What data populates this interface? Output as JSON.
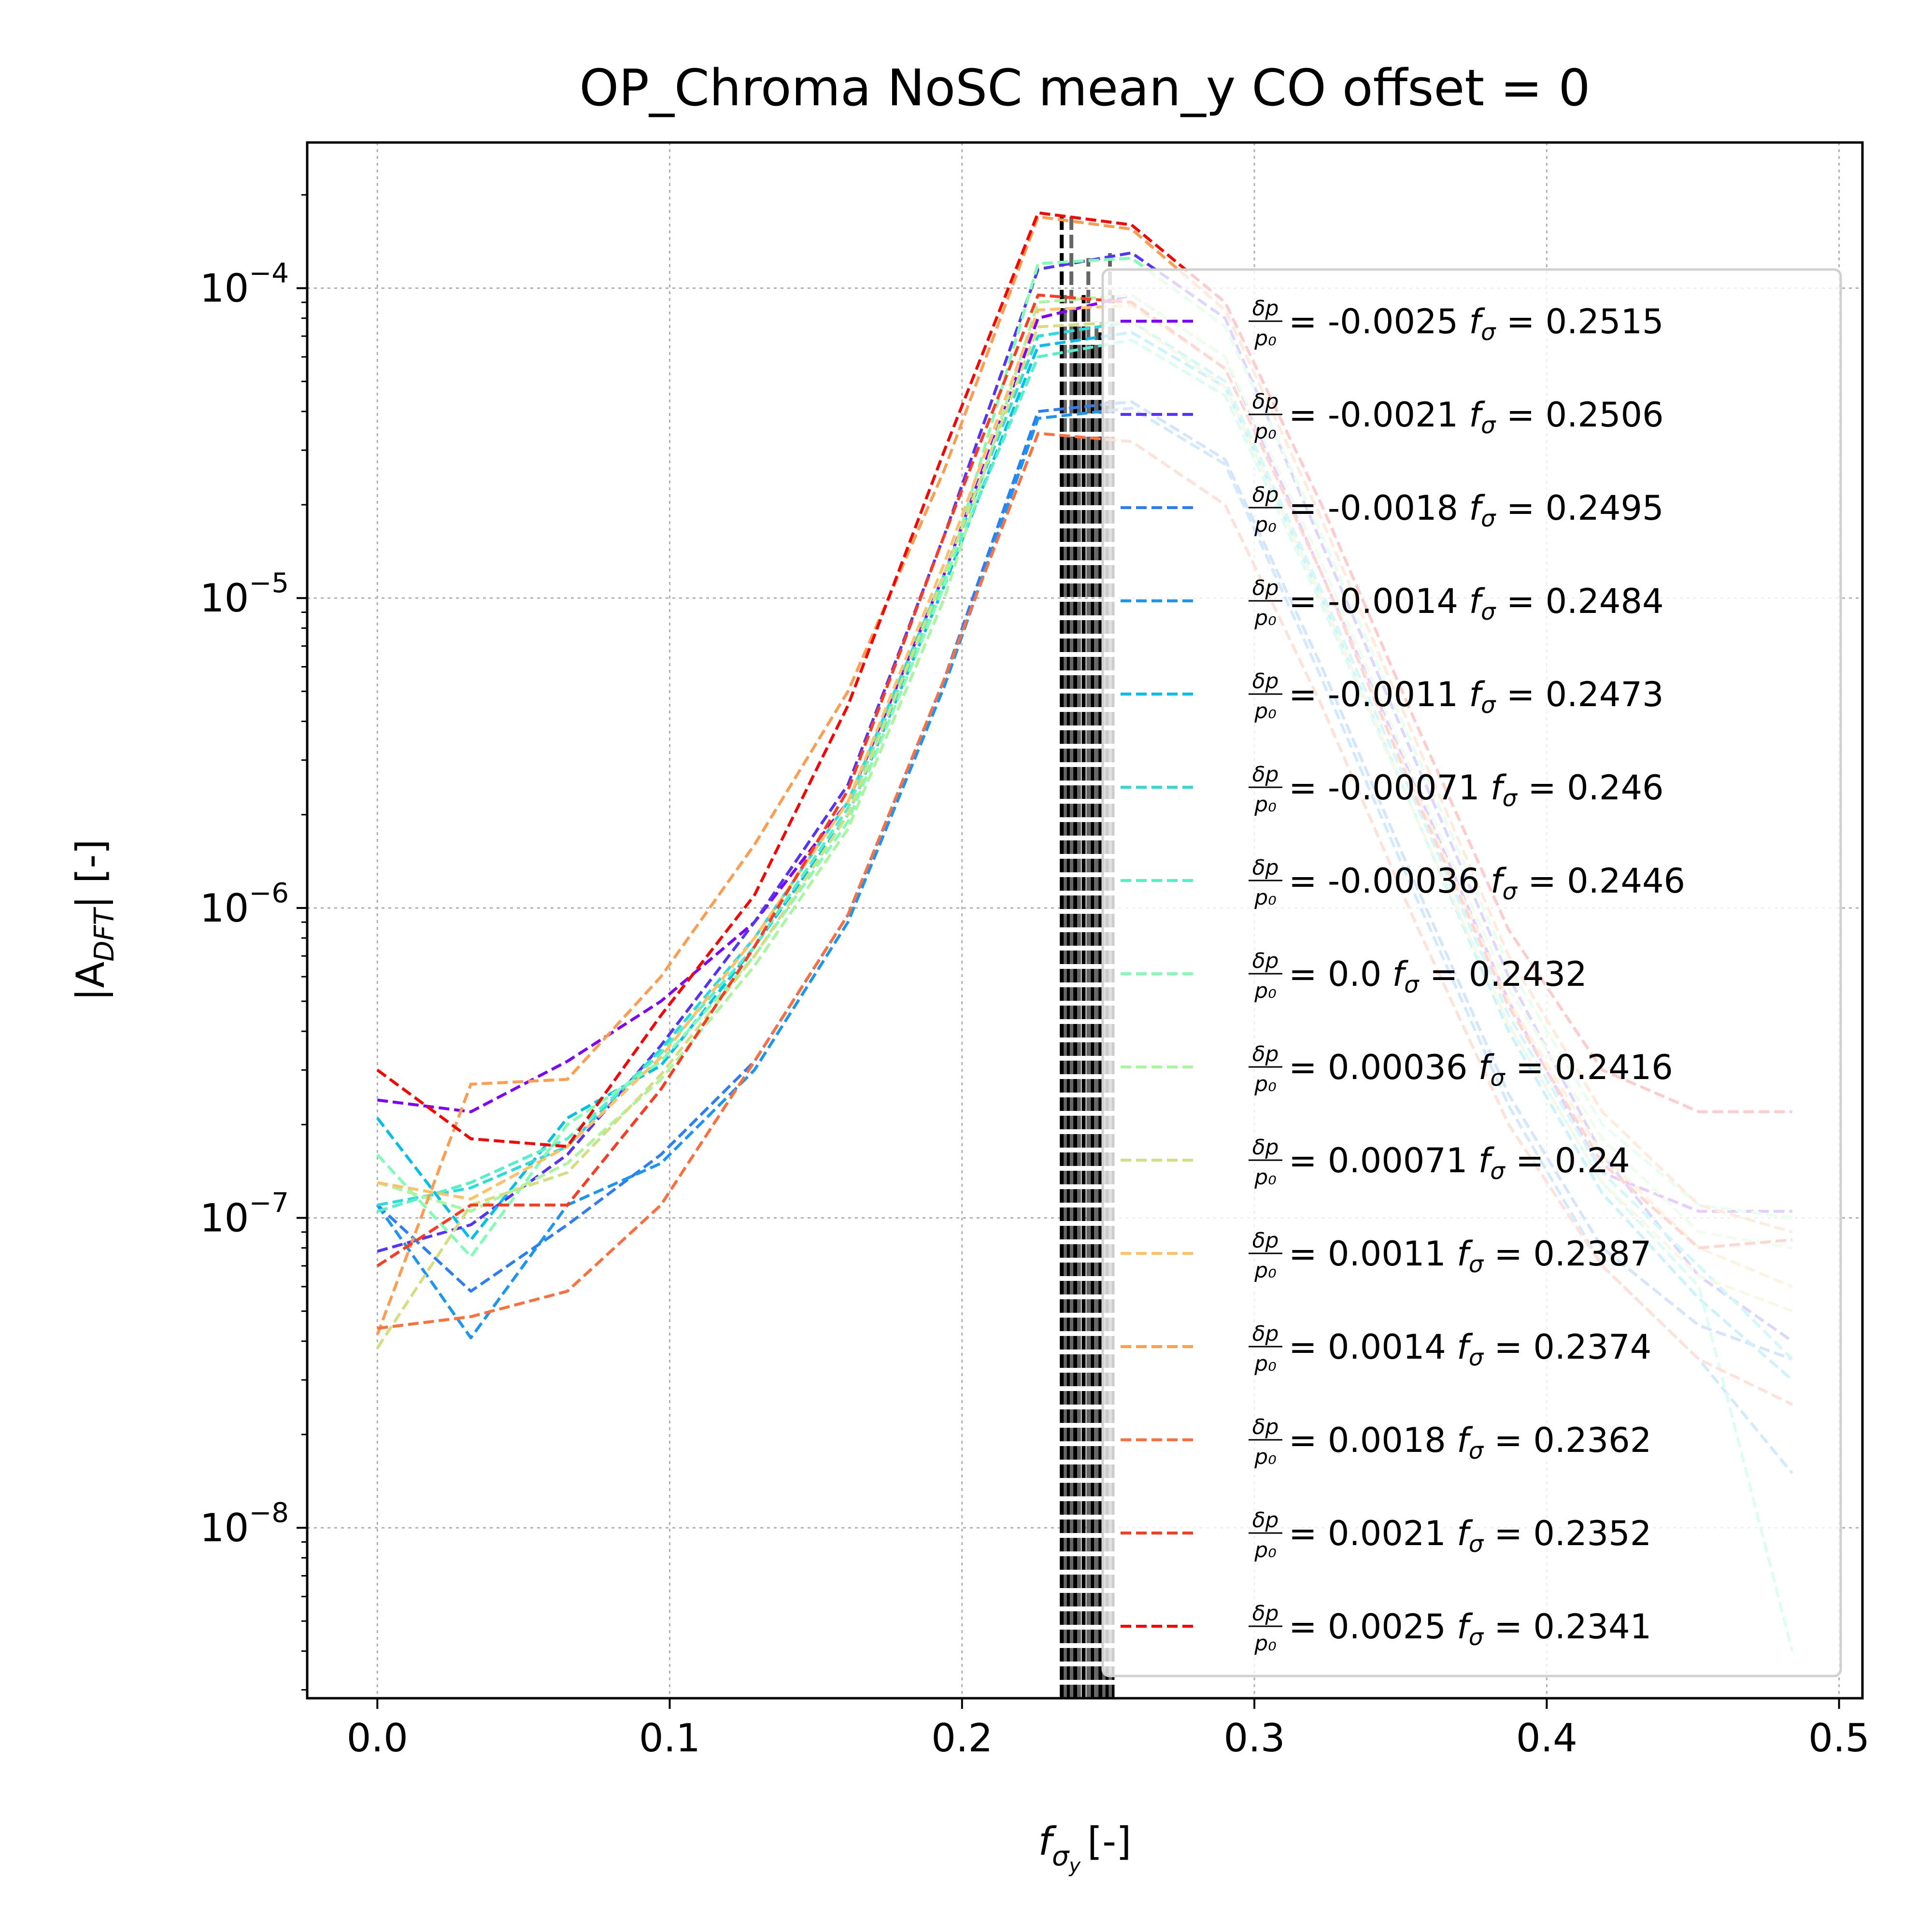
{
  "chart_data": {
    "type": "line",
    "title": "OP_Chroma NoSC mean_y  CO offset = 0",
    "xlabel_main": "f",
    "xlabel_sub": "σ",
    "xlabel_subsub": "y",
    "xlabel_unit": "[-]",
    "ylabel_main": "|A",
    "ylabel_sub": "DFT",
    "ylabel_unit": "| [-]",
    "xlim": [
      -0.024,
      0.508
    ],
    "ylim_exp": [
      -8.55,
      -3.53
    ],
    "y_scale": "log",
    "grid": true,
    "legend_placement": "right",
    "x_ticks": [
      {
        "v": 0.0,
        "label": "0.0"
      },
      {
        "v": 0.1,
        "label": "0.1"
      },
      {
        "v": 0.2,
        "label": "0.2"
      },
      {
        "v": 0.3,
        "label": "0.3"
      },
      {
        "v": 0.4,
        "label": "0.4"
      },
      {
        "v": 0.5,
        "label": "0.5"
      }
    ],
    "y_ticks": [
      {
        "exp": -4,
        "base": "10",
        "sup": "−4"
      },
      {
        "exp": -5,
        "base": "10",
        "sup": "−5"
      },
      {
        "exp": -6,
        "base": "10",
        "sup": "−6"
      },
      {
        "exp": -7,
        "base": "10",
        "sup": "−7"
      },
      {
        "exp": -8,
        "base": "10",
        "sup": "−8"
      }
    ],
    "x": [
      0.0,
      0.032,
      0.065,
      0.097,
      0.129,
      0.161,
      0.194,
      0.226,
      0.258,
      0.29,
      0.323,
      0.355,
      0.387,
      0.419,
      0.452,
      0.484
    ],
    "legend_frac_num": "δp",
    "legend_frac_den": "p₀",
    "legend_f_label": "f",
    "legend_f_sub": "σ",
    "series": [
      {
        "dp": "-0.0025",
        "fs": "0.2515",
        "color": "#8000ff",
        "tune": 0.2515,
        "y": [
          2.4e-07,
          2.2e-07,
          3.2e-07,
          5e-07,
          9e-07,
          2.2e-06,
          1.2e-05,
          8e-05,
          9.5e-05,
          6e-05,
          1.2e-05,
          2.5e-06,
          5e-07,
          1.4e-07,
          1.05e-07,
          1.05e-07
        ]
      },
      {
        "dp": "-0.0021",
        "fs": "0.2506",
        "color": "#5533fc",
        "tune": 0.2506,
        "y": [
          7.8e-08,
          9.5e-08,
          1.6e-07,
          3.6e-07,
          9e-07,
          2.5e-06,
          1.6e-05,
          0.000115,
          0.00013,
          8e-05,
          1.5e-05,
          3e-06,
          6e-07,
          1.6e-07,
          6.5e-08,
          4e-08
        ]
      },
      {
        "dp": "-0.0018",
        "fs": "0.2495",
        "color": "#2c7ef7",
        "tune": 0.2495,
        "y": [
          1.1e-07,
          5.8e-08,
          9.5e-08,
          1.6e-07,
          3.2e-07,
          9.5e-07,
          5.5e-06,
          4e-05,
          4.3e-05,
          2.8e-05,
          6e-06,
          1.2e-06,
          2.5e-07,
          8e-08,
          4.5e-08,
          3.5e-08
        ]
      },
      {
        "dp": "-0.0014",
        "fs": "0.2484",
        "color": "#1996f3",
        "tune": 0.2484,
        "y": [
          1.1e-07,
          4.1e-08,
          1.1e-07,
          1.5e-07,
          3e-07,
          9e-07,
          5.2e-06,
          3.8e-05,
          4.1e-05,
          2.7e-05,
          5.5e-06,
          1.1e-06,
          2.3e-07,
          7e-08,
          3.5e-08,
          1.5e-08
        ]
      },
      {
        "dp": "-0.0011",
        "fs": "0.2473",
        "color": "#00c0eb",
        "tune": 0.2473,
        "y": [
          2.1e-07,
          8.5e-08,
          2.1e-07,
          3.1e-07,
          7.5e-07,
          2e-06,
          1.1e-05,
          6.5e-05,
          7.2e-05,
          4.8e-05,
          1e-05,
          2e-06,
          4e-07,
          1.2e-07,
          5.5e-08,
          3e-08
        ]
      },
      {
        "dp": "-0.00071",
        "fs": "0.246",
        "color": "#2adddd",
        "tune": 0.246,
        "y": [
          1.1e-07,
          1.25e-07,
          1.7e-07,
          3.5e-07,
          8e-07,
          2.2e-06,
          1.2e-05,
          7e-05,
          7.8e-05,
          5e-05,
          1.05e-05,
          2.2e-06,
          4.5e-07,
          1.4e-07,
          7e-08,
          3.5e-08
        ]
      },
      {
        "dp": "-0.00036",
        "fs": "0.2446",
        "color": "#55f0c8",
        "tune": 0.2446,
        "y": [
          1.05e-07,
          1.3e-07,
          1.8e-07,
          3.4e-07,
          7.5e-07,
          2.1e-06,
          1.15e-05,
          6e-05,
          6.8e-05,
          4.5e-05,
          9.5e-06,
          2e-06,
          4.2e-07,
          1.3e-07,
          6e-08,
          4e-09
        ]
      },
      {
        "dp": "0.0",
        "fs": "0.2432",
        "color": "#80ffb4",
        "tune": 0.2432,
        "y": [
          1.6e-07,
          7.5e-08,
          2e-07,
          3.2e-07,
          7e-07,
          1.9e-06,
          1.1e-05,
          0.00012,
          0.000125,
          7.5e-05,
          1.6e-05,
          3.2e-06,
          6.5e-07,
          2e-07,
          1.1e-07,
          1e-07
        ]
      },
      {
        "dp": "0.00036",
        "fs": "0.2416",
        "color": "#aaf5a0",
        "tune": 0.2416,
        "y": [
          1.3e-07,
          1.05e-07,
          1.5e-07,
          2.8e-07,
          6.5e-07,
          1.8e-06,
          1e-05,
          9e-05,
          9.5e-05,
          6e-05,
          1.3e-05,
          2.6e-06,
          5.5e-07,
          1.8e-07,
          9e-08,
          8e-08
        ]
      },
      {
        "dp": "0.00071",
        "fs": "0.24",
        "color": "#d4dd80",
        "tune": 0.24,
        "y": [
          3.8e-08,
          1.1e-07,
          1.4e-07,
          2.9e-07,
          7e-07,
          2e-06,
          1.2e-05,
          7.5e-05,
          7.8e-05,
          4.8e-05,
          1e-05,
          2e-06,
          4.2e-07,
          1.3e-07,
          6.5e-08,
          5e-08
        ]
      },
      {
        "dp": "0.0011",
        "fs": "0.2387",
        "color": "#ffc066",
        "tune": 0.2387,
        "y": [
          1.3e-07,
          1.15e-07,
          1.7e-07,
          3.3e-07,
          8e-07,
          2.2e-06,
          1.3e-05,
          8.5e-05,
          8.8e-05,
          5.5e-05,
          1.2e-05,
          2.4e-06,
          5e-07,
          1.6e-07,
          8e-08,
          6e-08
        ]
      },
      {
        "dp": "0.0014",
        "fs": "0.2374",
        "color": "#ff9c4e",
        "tune": 0.2374,
        "y": [
          4.2e-08,
          2.7e-07,
          2.8e-07,
          6e-07,
          1.6e-06,
          5e-06,
          2.6e-05,
          0.00017,
          0.000155,
          8.5e-05,
          1.8e-05,
          3.5e-06,
          7e-07,
          2.2e-07,
          1.1e-07,
          9e-08
        ]
      },
      {
        "dp": "0.0018",
        "fs": "0.2362",
        "color": "#ff6e3b",
        "tune": 0.2362,
        "y": [
          4.4e-08,
          4.8e-08,
          5.8e-08,
          1.1e-07,
          3.2e-07,
          9.5e-07,
          5.5e-06,
          3.4e-05,
          3.2e-05,
          2e-05,
          4.5e-06,
          9e-07,
          2e-07,
          7e-08,
          3.5e-08,
          2.5e-08
        ]
      },
      {
        "dp": "0.0021",
        "fs": "0.2352",
        "color": "#ff3a1e",
        "tune": 0.2352,
        "y": [
          7e-08,
          1.1e-07,
          1.1e-07,
          2.6e-07,
          7.5e-07,
          2.4e-06,
          1.6e-05,
          9.5e-05,
          9e-05,
          5.5e-05,
          1.2e-05,
          2.3e-06,
          4.8e-07,
          1.5e-07,
          8e-08,
          8.5e-08
        ]
      },
      {
        "dp": "0.0025",
        "fs": "0.2341",
        "color": "#ff0000",
        "tune": 0.2341,
        "y": [
          3e-07,
          1.8e-07,
          1.7e-07,
          4.5e-07,
          1.1e-06,
          4.5e-06,
          3e-05,
          0.000175,
          0.00016,
          9e-05,
          2e-05,
          4e-06,
          8.5e-07,
          3e-07,
          2.2e-07,
          2.2e-07
        ]
      }
    ]
  }
}
